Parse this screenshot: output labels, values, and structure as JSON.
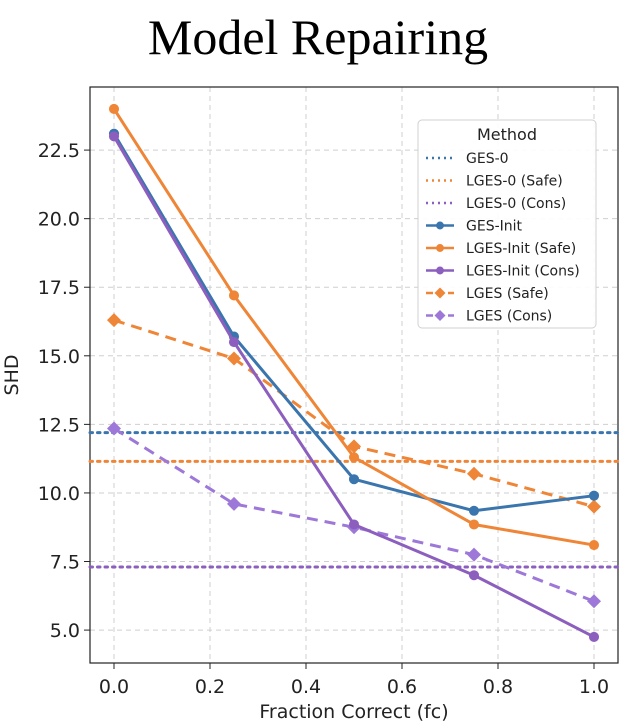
{
  "chart_data": {
    "type": "line",
    "title": "Model Repairing",
    "xlabel": "Fraction Correct (fc)",
    "ylabel": "SHD",
    "xlim": [
      -0.05,
      1.05
    ],
    "ylim": [
      3.8,
      24.8
    ],
    "xticks": [
      0.0,
      0.2,
      0.4,
      0.6,
      0.8,
      1.0
    ],
    "xtick_labels": [
      "0.0",
      "0.2",
      "0.4",
      "0.6",
      "0.8",
      "1.0"
    ],
    "yticks": [
      5.0,
      7.5,
      10.0,
      12.5,
      15.0,
      17.5,
      20.0,
      22.5
    ],
    "ytick_labels": [
      "5.0",
      "7.5",
      "10.0",
      "12.5",
      "15.0",
      "17.5",
      "20.0",
      "22.5"
    ],
    "grid": true,
    "legend_title": "Method",
    "legend_position": "upper-right",
    "x": [
      0.0,
      0.25,
      0.5,
      0.75,
      1.0
    ],
    "baselines": [
      {
        "name": "GES-0",
        "value": 12.2,
        "color": "#3a75ae",
        "style": "dotted"
      },
      {
        "name": "LGES-0 (Safe)",
        "value": 11.15,
        "color": "#ef8536",
        "style": "dotted"
      },
      {
        "name": "LGES-0 (Cons)",
        "value": 7.3,
        "color": "#8c5fbf",
        "style": "dotted"
      }
    ],
    "series": [
      {
        "name": "GES-Init",
        "values": [
          23.1,
          15.7,
          10.5,
          9.35,
          9.9
        ],
        "color": "#3a75ae",
        "style": "solid",
        "marker": "circle"
      },
      {
        "name": "LGES-Init (Safe)",
        "values": [
          24.0,
          17.2,
          11.3,
          8.85,
          8.1
        ],
        "color": "#ef8536",
        "style": "solid",
        "marker": "circle"
      },
      {
        "name": "LGES-Init (Cons)",
        "values": [
          23.0,
          15.5,
          8.85,
          7.0,
          4.75
        ],
        "color": "#8c5fbf",
        "style": "solid",
        "marker": "circle"
      },
      {
        "name": "LGES (Safe)",
        "values": [
          16.3,
          14.9,
          11.7,
          10.7,
          9.5
        ],
        "color": "#ef8536",
        "style": "dashed",
        "marker": "diamond"
      },
      {
        "name": "LGES (Cons)",
        "values": [
          12.35,
          9.6,
          8.75,
          7.75,
          6.05
        ],
        "color": "#9d78d8",
        "style": "dashed",
        "marker": "diamond"
      }
    ]
  }
}
